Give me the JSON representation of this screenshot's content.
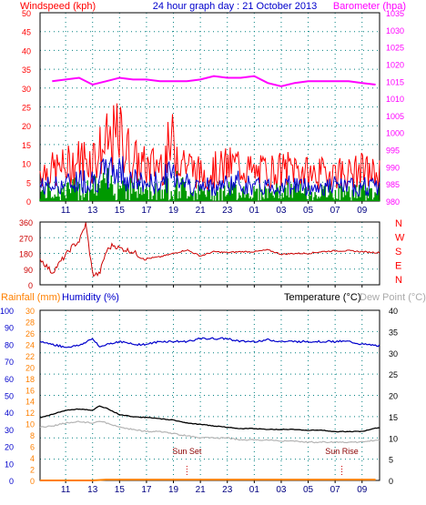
{
  "chart_data": [
    {
      "id": "wind_baro",
      "type": "line",
      "title": "24 hour graph day : 21 October 2013",
      "y_left_label": "Windspeed (kph)",
      "y_right_label": "Barometer (hpa)",
      "y_left_range": [
        0,
        50
      ],
      "y_left_ticks": [
        "0",
        "5",
        "10",
        "15",
        "20",
        "25",
        "30",
        "35",
        "40",
        "45",
        "50"
      ],
      "y_right_range": [
        980,
        1035
      ],
      "y_right_ticks": [
        "980",
        "985",
        "990",
        "995",
        "1000",
        "1005",
        "1010",
        "1015",
        "1020",
        "1025",
        "1030",
        "1035"
      ],
      "x_ticks": [
        "11",
        "13",
        "15",
        "17",
        "19",
        "21",
        "23",
        "01",
        "03",
        "05",
        "07",
        "09"
      ],
      "grid": true,
      "series": [
        {
          "name": "Windspeed (kph)",
          "color": "#ff0000",
          "x": [
            10,
            11,
            12,
            13,
            14,
            15,
            16,
            17,
            18,
            19,
            20,
            21,
            22,
            23,
            24,
            25,
            26,
            27,
            28,
            29,
            30,
            31,
            32,
            33,
            34
          ],
          "values": [
            9,
            10,
            12,
            13,
            16,
            19,
            12,
            10,
            11,
            17,
            11,
            8,
            9,
            10,
            11,
            8,
            9,
            9,
            10,
            8,
            8,
            9,
            8,
            9,
            8
          ]
        },
        {
          "name": "Barometer (hpa)",
          "color": "#ff00ff",
          "x": [
            10,
            11,
            12,
            13,
            14,
            15,
            16,
            17,
            18,
            19,
            20,
            21,
            22,
            23,
            24,
            25,
            26,
            27,
            28,
            29,
            30,
            31,
            32,
            33,
            34
          ],
          "values": [
            1015,
            1015.5,
            1016,
            1014,
            1015,
            1016,
            1015.5,
            1015.5,
            1015,
            1015,
            1015,
            1015.5,
            1016.5,
            1016,
            1016,
            1016.5,
            1014.5,
            1013.5,
            1014.5,
            1015,
            1015,
            1015,
            1015,
            1014.5,
            1014
          ]
        }
      ]
    },
    {
      "id": "wind_direction",
      "type": "line",
      "y_range": [
        0,
        360
      ],
      "y_ticks": [
        "0",
        "90",
        "180",
        "270",
        "360"
      ],
      "compass_labels": [
        "N",
        "W",
        "S",
        "E",
        "N"
      ],
      "x_ticks": [
        "11",
        "13",
        "15",
        "17",
        "19",
        "21",
        "23",
        "01",
        "03",
        "05",
        "07",
        "09"
      ],
      "grid": true,
      "series": [
        {
          "name": "Wind direction",
          "color": "#cc0000",
          "x": [
            9.1,
            10,
            10.8,
            11.5,
            12,
            12.5,
            13,
            13.5,
            14,
            14.5,
            15,
            15.5,
            16,
            16.5,
            17,
            18,
            19,
            20,
            21,
            22,
            23,
            24,
            25,
            26,
            27,
            28,
            29,
            30,
            31,
            32,
            33,
            34
          ],
          "values": [
            150,
            70,
            150,
            220,
            250,
            350,
            60,
            60,
            190,
            230,
            210,
            200,
            190,
            165,
            150,
            160,
            180,
            200,
            165,
            190,
            185,
            190,
            190,
            200,
            175,
            180,
            180,
            190,
            195,
            195,
            190,
            185
          ]
        }
      ]
    },
    {
      "id": "temp_hum_rain",
      "type": "line",
      "y_far_left_label": "Rainfall (mm)",
      "y_near_left_label": "Humidity (%)",
      "y_right_label_1": "Temperature (°C)",
      "y_right_label_2": "Dew Point (°C)",
      "y_rain_range": [
        0,
        100
      ],
      "y_rain_ticks": [
        "0",
        "10",
        "20",
        "30",
        "40",
        "50",
        "60",
        "70",
        "80",
        "90",
        "100"
      ],
      "y_hum_range": [
        0,
        30
      ],
      "y_hum_ticks": [
        "0",
        "2",
        "4",
        "6",
        "8",
        "10",
        "12",
        "14",
        "16",
        "18",
        "20",
        "22",
        "24",
        "26",
        "28",
        "30"
      ],
      "y_temp_range": [
        0,
        40
      ],
      "y_temp_ticks": [
        "0",
        "5",
        "10",
        "15",
        "20",
        "25",
        "30",
        "35",
        "40"
      ],
      "x_ticks": [
        "11",
        "13",
        "15",
        "17",
        "19",
        "21",
        "23",
        "01",
        "03",
        "05",
        "07",
        "09"
      ],
      "annotations": [
        {
          "label": "Sun Set",
          "x": 20
        },
        {
          "label": "Sun Rise",
          "x": 31.5
        }
      ],
      "grid": true,
      "series": [
        {
          "name": "Humidity (%)",
          "color": "#0000cc",
          "x": [
            9.1,
            10,
            11,
            12,
            13,
            13.5,
            14,
            15,
            16,
            17,
            18,
            19,
            20,
            21,
            22,
            23,
            24,
            25,
            26,
            27,
            28,
            29,
            30,
            31,
            32,
            33,
            34
          ],
          "values": [
            24.5,
            24,
            23.5,
            23.8,
            25,
            23.5,
            24,
            24.5,
            24,
            24,
            24.5,
            24.5,
            24.5,
            25,
            25,
            25,
            24.5,
            24.5,
            24.8,
            24.5,
            24.5,
            24.5,
            24.5,
            24.5,
            24.5,
            24,
            23.8
          ]
        },
        {
          "name": "Temperature (°C)",
          "color": "#000000",
          "x": [
            9.1,
            10,
            11,
            12,
            13,
            13.5,
            14,
            15,
            16,
            17,
            18,
            19,
            20,
            21,
            22,
            23,
            24,
            25,
            26,
            27,
            28,
            29,
            30,
            31,
            32,
            33,
            34
          ],
          "values": [
            14.8,
            15.5,
            16.5,
            16.8,
            16.5,
            17.5,
            17,
            15.5,
            15,
            14.8,
            14.5,
            14.2,
            13.5,
            13.2,
            12.8,
            12.5,
            12.2,
            12.2,
            12,
            12,
            12,
            11.8,
            11.8,
            11.5,
            11.5,
            11.5,
            12.3
          ]
        },
        {
          "name": "Dew Point (°C)",
          "color": "#b4b4b4",
          "x": [
            9.1,
            10,
            11,
            12,
            13,
            13.5,
            14,
            15,
            16,
            17,
            18,
            19,
            20,
            21,
            22,
            23,
            24,
            25,
            26,
            27,
            28,
            29,
            30,
            31,
            32,
            33,
            34
          ],
          "values": [
            12.5,
            12.8,
            13.5,
            13.8,
            13.5,
            14,
            13.5,
            12.5,
            12,
            11.5,
            11.5,
            11,
            10.5,
            10,
            10,
            10,
            9.5,
            9.5,
            9.5,
            9.3,
            9.2,
            9,
            9,
            9,
            9,
            9,
            9.5
          ]
        },
        {
          "name": "Rainfall (mm)",
          "color": "#ff8000",
          "x": [
            9.1,
            13,
            14,
            34
          ],
          "values": [
            0,
            0,
            0.5,
            0.5
          ]
        }
      ]
    }
  ]
}
